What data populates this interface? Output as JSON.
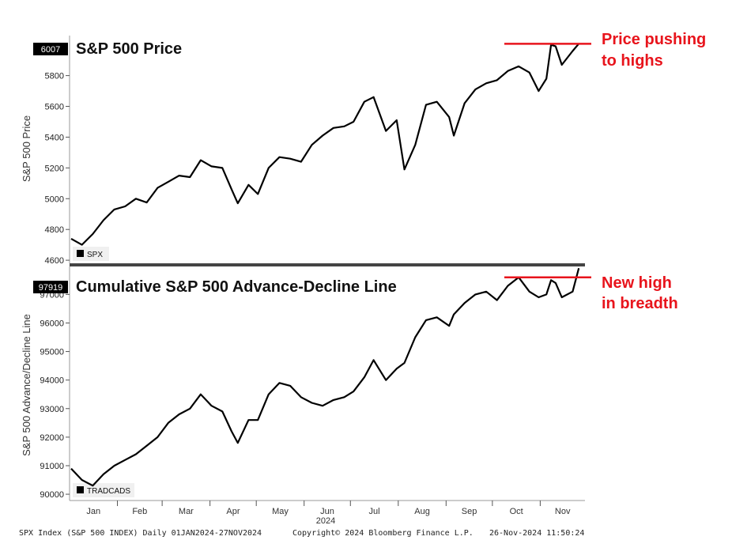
{
  "chart_data": [
    {
      "type": "line",
      "title": "S&P 500 Price",
      "ylabel": "S&P 500 Price",
      "ylim": [
        4580,
        6060
      ],
      "yticks": [
        4600,
        4800,
        5000,
        5200,
        5400,
        5600,
        5800
      ],
      "last_value_tag": "6007",
      "legend": {
        "label": "SPX",
        "placement": "bottom-left"
      },
      "series": [
        {
          "name": "SPX",
          "x": [
            "2024-01-02",
            "2024-01-09",
            "2024-01-16",
            "2024-01-23",
            "2024-01-30",
            "2024-02-06",
            "2024-02-13",
            "2024-02-20",
            "2024-02-27",
            "2024-03-05",
            "2024-03-12",
            "2024-03-19",
            "2024-03-26",
            "2024-04-02",
            "2024-04-09",
            "2024-04-15",
            "2024-04-19",
            "2024-04-26",
            "2024-05-02",
            "2024-05-09",
            "2024-05-16",
            "2024-05-23",
            "2024-05-30",
            "2024-06-06",
            "2024-06-13",
            "2024-06-20",
            "2024-06-27",
            "2024-07-03",
            "2024-07-10",
            "2024-07-16",
            "2024-07-24",
            "2024-07-31",
            "2024-08-05",
            "2024-08-12",
            "2024-08-19",
            "2024-08-26",
            "2024-09-03",
            "2024-09-06",
            "2024-09-13",
            "2024-09-20",
            "2024-09-27",
            "2024-10-04",
            "2024-10-11",
            "2024-10-18",
            "2024-10-25",
            "2024-10-31",
            "2024-11-05",
            "2024-11-08",
            "2024-11-11",
            "2024-11-15",
            "2024-11-22",
            "2024-11-26"
          ],
          "values": [
            4740,
            4700,
            4770,
            4860,
            4930,
            4950,
            5000,
            4975,
            5070,
            5110,
            5150,
            5140,
            5250,
            5210,
            5200,
            5060,
            4970,
            5090,
            5030,
            5200,
            5270,
            5260,
            5240,
            5350,
            5410,
            5460,
            5470,
            5500,
            5630,
            5660,
            5440,
            5510,
            5190,
            5350,
            5610,
            5630,
            5530,
            5410,
            5620,
            5710,
            5750,
            5770,
            5830,
            5860,
            5820,
            5700,
            5780,
            6000,
            5990,
            5870,
            5960,
            6007
          ]
        }
      ],
      "annotation": {
        "text_line1": "Price pushing",
        "text_line2": "to highs",
        "value": 6007,
        "color": "#e8141c"
      }
    },
    {
      "type": "line",
      "title": "Cumulative S&P 500 Advance-Decline Line",
      "ylabel": "S&P 500 Advance/Decline Line",
      "ylim": [
        89780,
        97980
      ],
      "yticks": [
        90000,
        91000,
        92000,
        93000,
        94000,
        95000,
        96000,
        97000
      ],
      "last_value_tag": "97919",
      "legend": {
        "label": "TRADCADS",
        "placement": "bottom-left"
      },
      "series": [
        {
          "name": "TRADCADS",
          "x": [
            "2024-01-02",
            "2024-01-09",
            "2024-01-16",
            "2024-01-23",
            "2024-01-30",
            "2024-02-06",
            "2024-02-13",
            "2024-02-20",
            "2024-02-27",
            "2024-03-05",
            "2024-03-12",
            "2024-03-19",
            "2024-03-26",
            "2024-04-02",
            "2024-04-09",
            "2024-04-15",
            "2024-04-19",
            "2024-04-26",
            "2024-05-02",
            "2024-05-09",
            "2024-05-16",
            "2024-05-23",
            "2024-05-30",
            "2024-06-06",
            "2024-06-13",
            "2024-06-20",
            "2024-06-27",
            "2024-07-03",
            "2024-07-10",
            "2024-07-16",
            "2024-07-24",
            "2024-07-31",
            "2024-08-05",
            "2024-08-12",
            "2024-08-19",
            "2024-08-26",
            "2024-09-03",
            "2024-09-06",
            "2024-09-13",
            "2024-09-20",
            "2024-09-27",
            "2024-10-04",
            "2024-10-11",
            "2024-10-18",
            "2024-10-25",
            "2024-10-31",
            "2024-11-05",
            "2024-11-08",
            "2024-11-11",
            "2024-11-15",
            "2024-11-22",
            "2024-11-26"
          ],
          "values": [
            90900,
            90500,
            90300,
            90700,
            91000,
            91200,
            91400,
            91700,
            92000,
            92500,
            92800,
            93000,
            93500,
            93100,
            92900,
            92200,
            91800,
            92600,
            92600,
            93500,
            93900,
            93800,
            93400,
            93200,
            93100,
            93300,
            93400,
            93600,
            94100,
            94700,
            94000,
            94400,
            94600,
            95500,
            96100,
            96200,
            95900,
            96300,
            96700,
            97000,
            97100,
            96800,
            97300,
            97600,
            97100,
            96900,
            97000,
            97500,
            97400,
            96900,
            97100,
            97919
          ]
        }
      ],
      "annotation": {
        "text_line1": "New high",
        "text_line2": "in breadth",
        "value": 97600,
        "color": "#e8141c"
      }
    }
  ],
  "x_axis": {
    "months": [
      "Jan",
      "Feb",
      "Mar",
      "Apr",
      "May",
      "Jun",
      "Jul",
      "Aug",
      "Sep",
      "Oct",
      "Nov"
    ],
    "year": "2024",
    "range": [
      "2024-01-01",
      "2024-11-30"
    ]
  },
  "footer": {
    "left": "SPX Index (S&P 500 INDEX) Daily 01JAN2024-27NOV2024",
    "middle": "Copyright© 2024 Bloomberg Finance L.P.",
    "right": "26-Nov-2024 11:50:24"
  },
  "colors": {
    "line": "#000000",
    "annotation": "#e8141c",
    "divider": "#444444"
  }
}
